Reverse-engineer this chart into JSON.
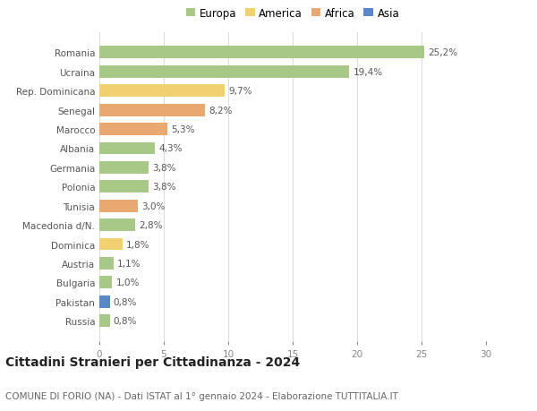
{
  "countries": [
    "Romania",
    "Ucraina",
    "Rep. Dominicana",
    "Senegal",
    "Marocco",
    "Albania",
    "Germania",
    "Polonia",
    "Tunisia",
    "Macedonia d/N.",
    "Dominica",
    "Austria",
    "Bulgaria",
    "Pakistan",
    "Russia"
  ],
  "values": [
    25.2,
    19.4,
    9.7,
    8.2,
    5.3,
    4.3,
    3.8,
    3.8,
    3.0,
    2.8,
    1.8,
    1.1,
    1.0,
    0.8,
    0.8
  ],
  "labels": [
    "25,2%",
    "19,4%",
    "9,7%",
    "8,2%",
    "5,3%",
    "4,3%",
    "3,8%",
    "3,8%",
    "3,0%",
    "2,8%",
    "1,8%",
    "1,1%",
    "1,0%",
    "0,8%",
    "0,8%"
  ],
  "continents": [
    "Europa",
    "Europa",
    "America",
    "Africa",
    "Africa",
    "Europa",
    "Europa",
    "Europa",
    "Africa",
    "Europa",
    "America",
    "Europa",
    "Europa",
    "Asia",
    "Europa"
  ],
  "continent_colors": {
    "Europa": "#a8c888",
    "America": "#f0d070",
    "Africa": "#e8a870",
    "Asia": "#5888c8"
  },
  "legend_order": [
    "Europa",
    "America",
    "Africa",
    "Asia"
  ],
  "title": "Cittadini Stranieri per Cittadinanza - 2024",
  "subtitle": "COMUNE DI FORIO (NA) - Dati ISTAT al 1° gennaio 2024 - Elaborazione TUTTITALIA.IT",
  "xlim": [
    0,
    30
  ],
  "xticks": [
    0,
    5,
    10,
    15,
    20,
    25,
    30
  ],
  "bg_color": "#ffffff",
  "grid_color": "#dddddd",
  "bar_height": 0.65,
  "label_fontsize": 7.5,
  "tick_fontsize": 7.5,
  "title_fontsize": 10,
  "subtitle_fontsize": 7.5,
  "legend_fontsize": 8.5
}
